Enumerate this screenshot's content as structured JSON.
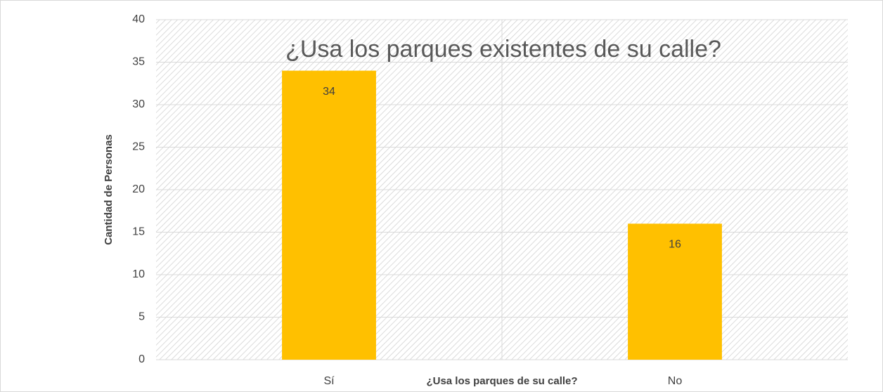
{
  "chart_data": {
    "type": "bar",
    "title": "¿Usa los parques existentes de su calle?",
    "xlabel": "¿Usa los parques de su calle?",
    "ylabel": "Cantidad de Personas",
    "categories": [
      "Sí",
      "No"
    ],
    "values": [
      34,
      16
    ],
    "color": "#ffc000",
    "ylim": [
      0,
      40
    ],
    "yticks": [
      0,
      5,
      10,
      15,
      20,
      25,
      30,
      35,
      40
    ],
    "grid": true
  }
}
